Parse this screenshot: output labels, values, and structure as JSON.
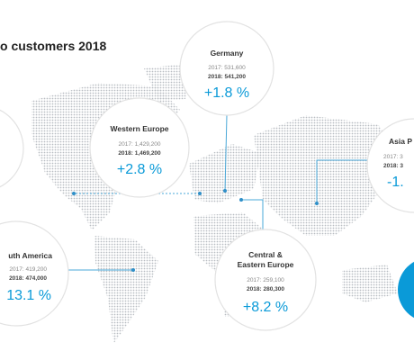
{
  "header": {
    "title": "o customers 2018"
  },
  "regions": [
    {
      "name": "Germany",
      "y2017": "2017: 531,600",
      "y2018": "2018: 541,200",
      "change": "+1.8 %"
    },
    {
      "name": "Western Europe",
      "y2017": "2017: 1,429,200",
      "y2018": "2018: 1,469,200",
      "change": "+2.8 %"
    },
    {
      "name": "Asia P",
      "y2017": "2017: 3",
      "y2018": "2018: 3",
      "change": "-1."
    },
    {
      "name": "uth America",
      "y2017": "2017: 419,200",
      "y2018": "2018: 474,000",
      "change": "13.1 %"
    },
    {
      "name": "Central &",
      "name2": "Eastern Europe",
      "y2017": "2017: 259,100",
      "y2018": "2018: 280,300",
      "change": "+8.2 %"
    }
  ]
}
